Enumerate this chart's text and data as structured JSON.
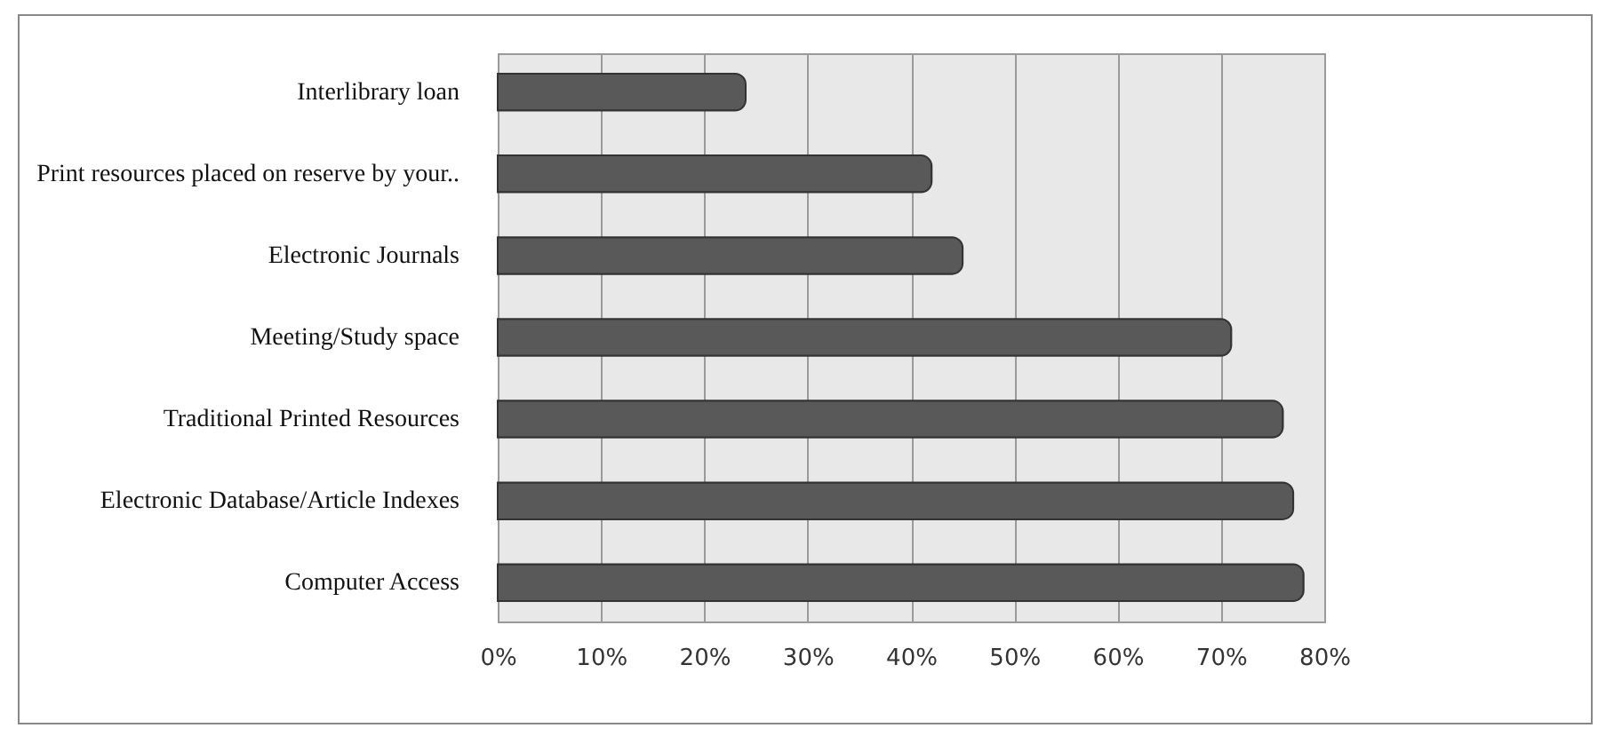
{
  "chart_data": {
    "type": "bar",
    "orientation": "horizontal",
    "categories": [
      "Interlibrary loan",
      "Print resources placed on reserve by your..",
      "Electronic Journals",
      "Meeting/Study space",
      "Traditional Printed Resources",
      "Electronic Database/Article Indexes",
      "Computer Access"
    ],
    "values": [
      0.24,
      0.42,
      0.45,
      0.71,
      0.76,
      0.77,
      0.78
    ],
    "color": "#595959",
    "xlim": [
      0,
      0.8
    ],
    "xticks": [
      {
        "value": 0,
        "label": "0%"
      },
      {
        "value": 0.1,
        "label": "10%"
      },
      {
        "value": 0.2,
        "label": "20%"
      },
      {
        "value": 0.3,
        "label": "30%"
      },
      {
        "value": 0.4,
        "label": "40%"
      },
      {
        "value": 0.5,
        "label": "50%"
      },
      {
        "value": 0.6,
        "label": "60%"
      },
      {
        "value": 0.7,
        "label": "70%"
      },
      {
        "value": 0.8,
        "label": "80%"
      }
    ],
    "grid": "x"
  }
}
